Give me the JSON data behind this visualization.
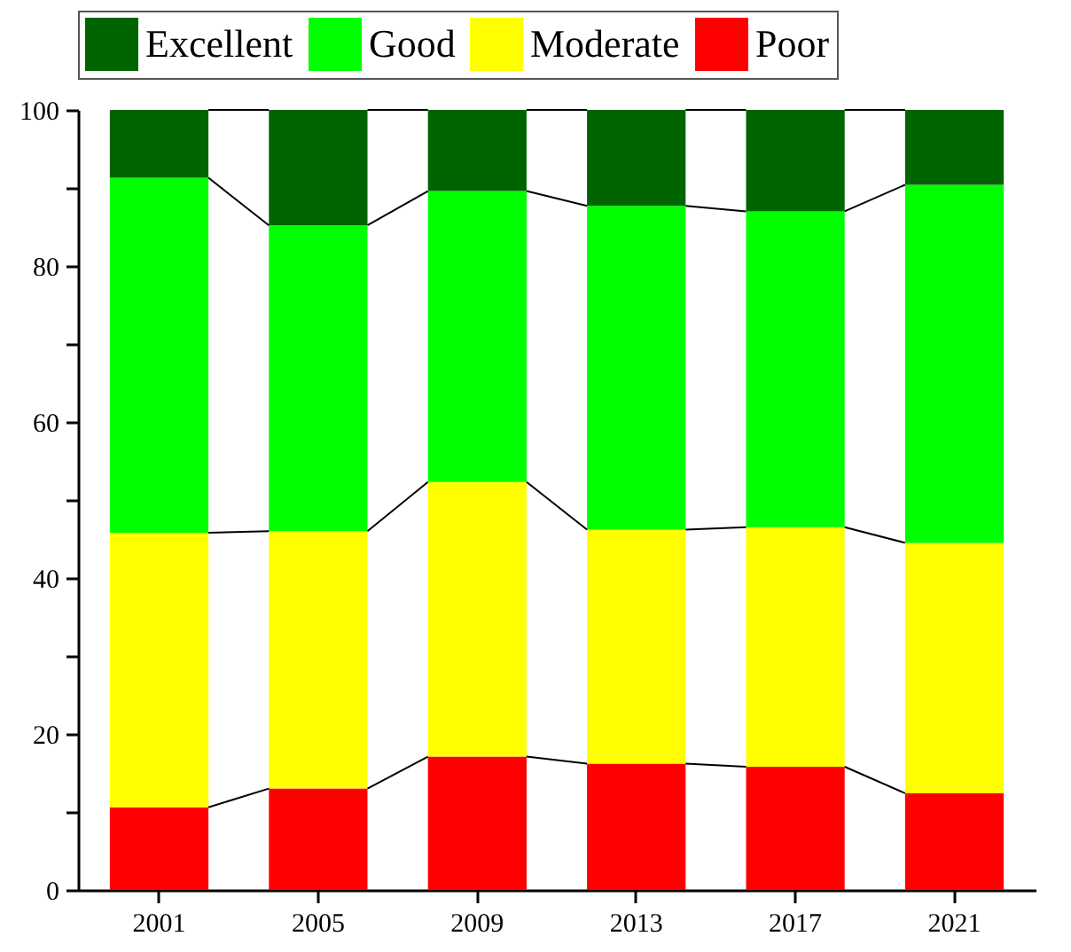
{
  "chart_data": {
    "type": "bar",
    "stacked": true,
    "categories": [
      "2001",
      "2005",
      "2009",
      "2013",
      "2017",
      "2021"
    ],
    "series": [
      {
        "name": "Poor",
        "color": "#ff0000",
        "values": [
          10.6,
          13.0,
          17.1,
          16.2,
          15.8,
          12.4
        ]
      },
      {
        "name": "Moderate",
        "color": "#ffff00",
        "values": [
          35.2,
          33.0,
          35.2,
          30.0,
          30.7,
          32.1
        ]
      },
      {
        "name": "Good",
        "color": "#00ff00",
        "values": [
          45.5,
          39.2,
          37.3,
          41.5,
          40.5,
          45.9
        ]
      },
      {
        "name": "Excellent",
        "color": "#006400",
        "values": [
          8.7,
          14.8,
          10.4,
          12.3,
          13.0,
          9.6
        ]
      }
    ],
    "ylim": [
      0,
      100
    ],
    "yticks": [
      0,
      {
        "value": 10,
        "label": null
      },
      20,
      {
        "value": 30,
        "label": null
      },
      40,
      {
        "value": 50,
        "label": null
      },
      60,
      {
        "value": 70,
        "label": null
      },
      80,
      {
        "value": 90,
        "label": null
      },
      100
    ],
    "grid": false,
    "legend": "top"
  }
}
